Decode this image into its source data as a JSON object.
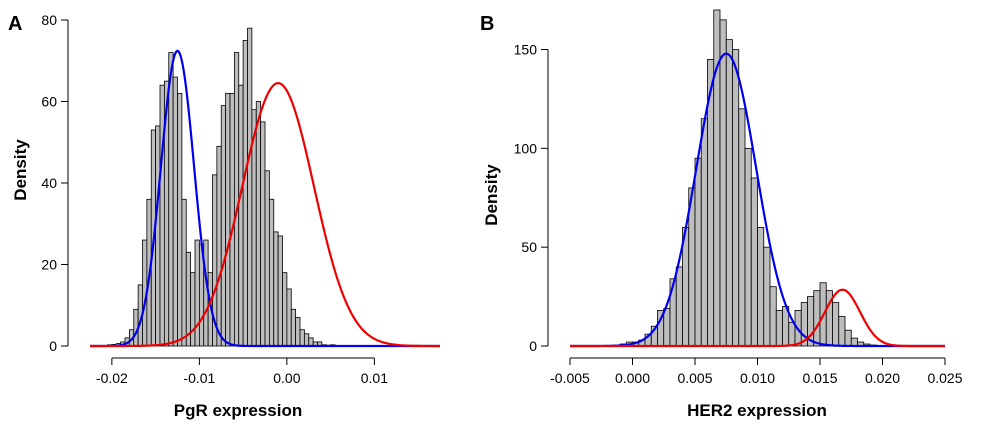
{
  "colors": {
    "bar_fill": "#bebebe",
    "bar_stroke": "#000000",
    "curve_1": "#0000ee",
    "curve_2": "#ee0000"
  },
  "chart_data": [
    {
      "panel": "A",
      "type": "bar",
      "subtype": "histogram with fitted normal mixture curves",
      "xlabel": "PgR  expression",
      "ylabel": "Density",
      "xlim": [
        -0.0225,
        0.0175
      ],
      "ylim": [
        0,
        80
      ],
      "xticks": [
        -0.02,
        -0.01,
        0.0,
        0.01
      ],
      "xtick_labels": [
        "-0.02",
        "-0.01",
        "0.00",
        "0.01"
      ],
      "yticks": [
        0,
        20,
        40,
        60,
        80
      ],
      "ytick_labels": [
        "0",
        "20",
        "40",
        "60",
        "80"
      ],
      "bin_width": 0.0005,
      "bin_start": -0.0205,
      "bin_values": [
        0.3,
        0.4,
        0.6,
        1,
        2,
        4,
        9,
        15,
        26,
        36,
        53,
        54,
        64,
        65,
        72,
        66,
        62,
        36,
        23,
        18,
        26,
        25,
        26,
        18,
        42,
        49,
        59,
        62,
        62,
        72,
        64,
        75,
        78,
        58,
        60,
        55,
        43,
        36,
        28,
        27,
        18,
        14,
        9,
        7,
        4,
        3,
        2,
        1,
        1,
        0.3,
        0.2,
        0.3
      ],
      "grid": false,
      "legend": "none",
      "series": [
        {
          "mean": -0.0125,
          "sd": 0.0019,
          "weight": 0.345,
          "color": "#0000ee"
        },
        {
          "mean": -0.001,
          "sd": 0.0041,
          "weight": 0.663,
          "color": "#ee0000"
        }
      ]
    },
    {
      "panel": "B",
      "type": "bar",
      "subtype": "histogram with fitted normal mixture curves",
      "xlabel": "HER2  expression",
      "ylabel": "Density",
      "xlim": [
        -0.005,
        0.025
      ],
      "ylim": [
        0,
        170
      ],
      "xticks": [
        -0.005,
        0.0,
        0.005,
        0.01,
        0.015,
        0.02,
        0.025
      ],
      "xtick_labels": [
        "-0.005",
        "0.000",
        "0.005",
        "0.010",
        "0.015",
        "0.020",
        "0.025"
      ],
      "yticks": [
        0,
        50,
        100,
        150
      ],
      "ytick_labels": [
        "0",
        "50",
        "100",
        "150"
      ],
      "bin_width": 0.0005,
      "bin_start": -0.0015,
      "bin_values": [
        0.5,
        1,
        2,
        2,
        3,
        6,
        10,
        18,
        19,
        34,
        40,
        60,
        80,
        95,
        115,
        145,
        170,
        165,
        155,
        150,
        120,
        100,
        85,
        60,
        50,
        30,
        18,
        20,
        12,
        18,
        22,
        25,
        28,
        32,
        28,
        22,
        15,
        8,
        4,
        2,
        1,
        0.5
      ],
      "grid": false,
      "legend": "none",
      "series": [
        {
          "mean": 0.0075,
          "sd": 0.0024,
          "weight": 0.89,
          "color": "#0000ee"
        },
        {
          "mean": 0.0168,
          "sd": 0.0014,
          "weight": 0.1,
          "color": "#ee0000"
        }
      ]
    }
  ],
  "panels": {
    "a": {
      "letter": "A"
    },
    "b": {
      "letter": "B"
    }
  }
}
